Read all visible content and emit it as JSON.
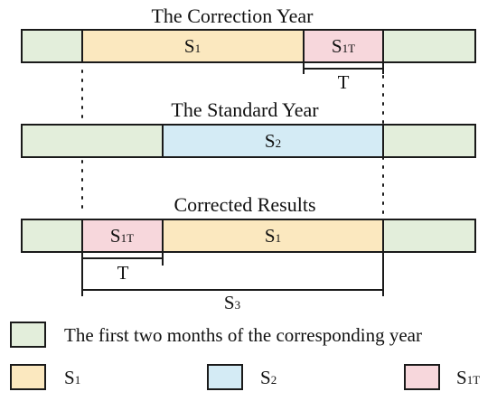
{
  "colors": {
    "first_two_months": "#e3eedb",
    "s1": "#fbe8bf",
    "s2": "#d4ebf5",
    "s1t": "#f7d7dc",
    "stroke": "#1a1a1a"
  },
  "correction_year": {
    "title": "The Correction Year",
    "s1_label": {
      "base": "S",
      "sub": "1"
    },
    "s1t_label": {
      "base": "S",
      "sub": "1T"
    },
    "span_label": "T"
  },
  "standard_year": {
    "title": "The Standard Year",
    "s2_label": {
      "base": "S",
      "sub": "2"
    }
  },
  "corrected_results": {
    "title": "Corrected Results",
    "s1t_label": {
      "base": "S",
      "sub": "1T"
    },
    "s1_label": {
      "base": "S",
      "sub": "1"
    },
    "span_label": "T",
    "total_label": {
      "base": "S",
      "sub": "3"
    }
  },
  "legend": {
    "first_two_months": "The first two months of the corresponding year",
    "s1": {
      "base": "S",
      "sub": "1"
    },
    "s2": {
      "base": "S",
      "sub": "2"
    },
    "s1t": {
      "base": "S",
      "sub": "1T"
    }
  }
}
